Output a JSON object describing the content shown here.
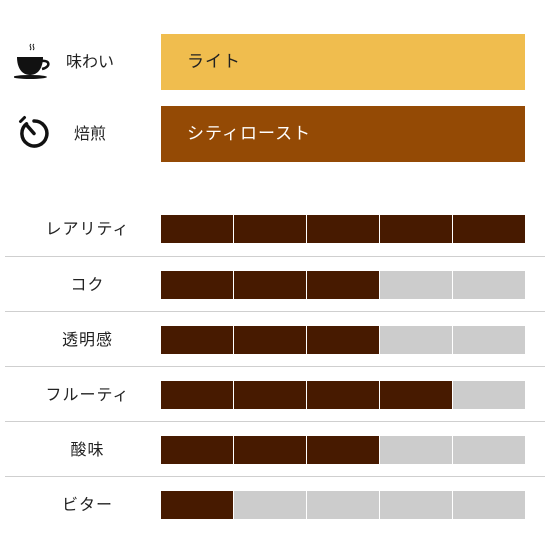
{
  "colors": {
    "flavor_bar": "#f0bd4e",
    "roast_bar": "#944a05",
    "filled_segment": "#471a00",
    "empty_segment": "#cccccc",
    "bar_text_light": "#222222",
    "bar_text_dark": "#ffffff"
  },
  "profile": {
    "flavor": {
      "icon": "coffee-cup-icon",
      "label": "味わい",
      "value": "ライト"
    },
    "roast": {
      "icon": "timer-icon",
      "label": "焙煎",
      "value": "シティロースト"
    }
  },
  "ratings": {
    "max": 5,
    "items": [
      {
        "label": "レアリティ",
        "value": 5
      },
      {
        "label": "コク",
        "value": 3
      },
      {
        "label": "透明感",
        "value": 3
      },
      {
        "label": "フルーティ",
        "value": 4
      },
      {
        "label": "酸味",
        "value": 3
      },
      {
        "label": "ビター",
        "value": 1
      }
    ]
  }
}
